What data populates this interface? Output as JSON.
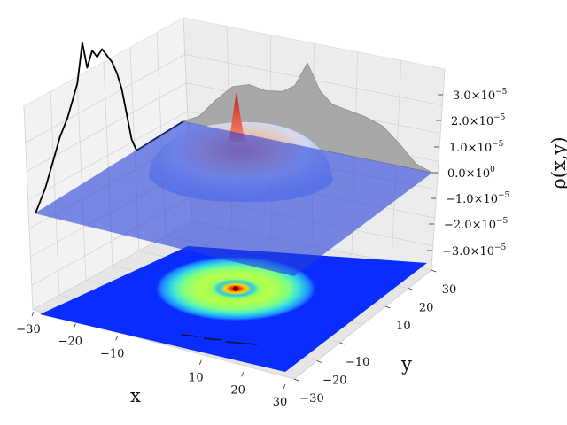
{
  "chart_data": {
    "type": "surface3d",
    "title": "",
    "xlabel": "x",
    "ylabel": "y",
    "zlabel": "ρ(x,y)",
    "xlim": [
      -30,
      30
    ],
    "ylim": [
      -30,
      30
    ],
    "zlim": [
      -3.5e-05,
      3.5e-05
    ],
    "x_ticks": [
      "−30",
      "−20",
      "−10",
      "10",
      "20",
      "30"
    ],
    "y_ticks": [
      "−30",
      "−20",
      "−10",
      "10",
      "20",
      "30"
    ],
    "z_ticks": [
      {
        "value": 3e-05,
        "mantissa": "3.0",
        "exponent": "−5"
      },
      {
        "value": 2e-05,
        "mantissa": "2.0",
        "exponent": "−5"
      },
      {
        "value": 1e-05,
        "mantissa": "1.0",
        "exponent": "−5"
      },
      {
        "value": 0,
        "mantissa": "0.0",
        "exponent": "0"
      },
      {
        "value": -1e-05,
        "mantissa": "−1.0",
        "exponent": "−5"
      },
      {
        "value": -2e-05,
        "mantissa": "−2.0",
        "exponent": "−5"
      },
      {
        "value": -3e-05,
        "mantissa": "−3.0",
        "exponent": "−5"
      }
    ],
    "surface": {
      "description": "radially symmetric density: sharp central peak plus an outer ring",
      "central_peak": 3e-05,
      "ring_radius": 18,
      "ring_height": 1.2e-05
    },
    "projections": {
      "x_profile": {
        "color": "#000000",
        "x": [
          -30,
          -26,
          -22,
          -20,
          -17,
          -15,
          -13,
          -11,
          -9,
          -7,
          -5,
          -3,
          -1,
          1,
          3,
          5,
          7,
          9,
          11,
          13,
          15,
          17,
          20,
          22,
          26,
          30
        ],
        "y": [
          0,
          4e-06,
          1e-05,
          1.3e-05,
          1.6e-05,
          1.9e-05,
          2.2e-05,
          3e-05,
          2.4e-05,
          2.7e-05,
          2.5e-05,
          2.6e-05,
          2.4e-05,
          2.2e-05,
          1.9e-05,
          1.5e-05,
          9e-06,
          3e-06,
          0,
          0,
          0,
          0,
          0,
          0,
          0,
          0
        ]
      },
      "y_profile": {
        "color": "#a0a0a0",
        "y": [
          -30,
          -26,
          -22,
          -18,
          -14,
          -10,
          -6,
          -3,
          0,
          3,
          6,
          10,
          14,
          18,
          22,
          26,
          30
        ],
        "z": [
          0,
          3e-06,
          1e-05,
          1.6e-05,
          1.8e-05,
          1.7e-05,
          1.8e-05,
          2.1e-05,
          3e-05,
          2.1e-05,
          1.7e-05,
          1.6e-05,
          1.5e-05,
          1.3e-05,
          8e-06,
          2e-06,
          0
        ]
      },
      "z_floor": {
        "type": "contourf",
        "colormap": "jet",
        "levels": "filled contour of the same density"
      }
    },
    "plane": {
      "z": 0,
      "color": "#2540d8",
      "alpha": 0.6
    },
    "grid": true,
    "colors": {
      "pane": "#f2f2f2",
      "grid": "#d8d8d8"
    }
  }
}
